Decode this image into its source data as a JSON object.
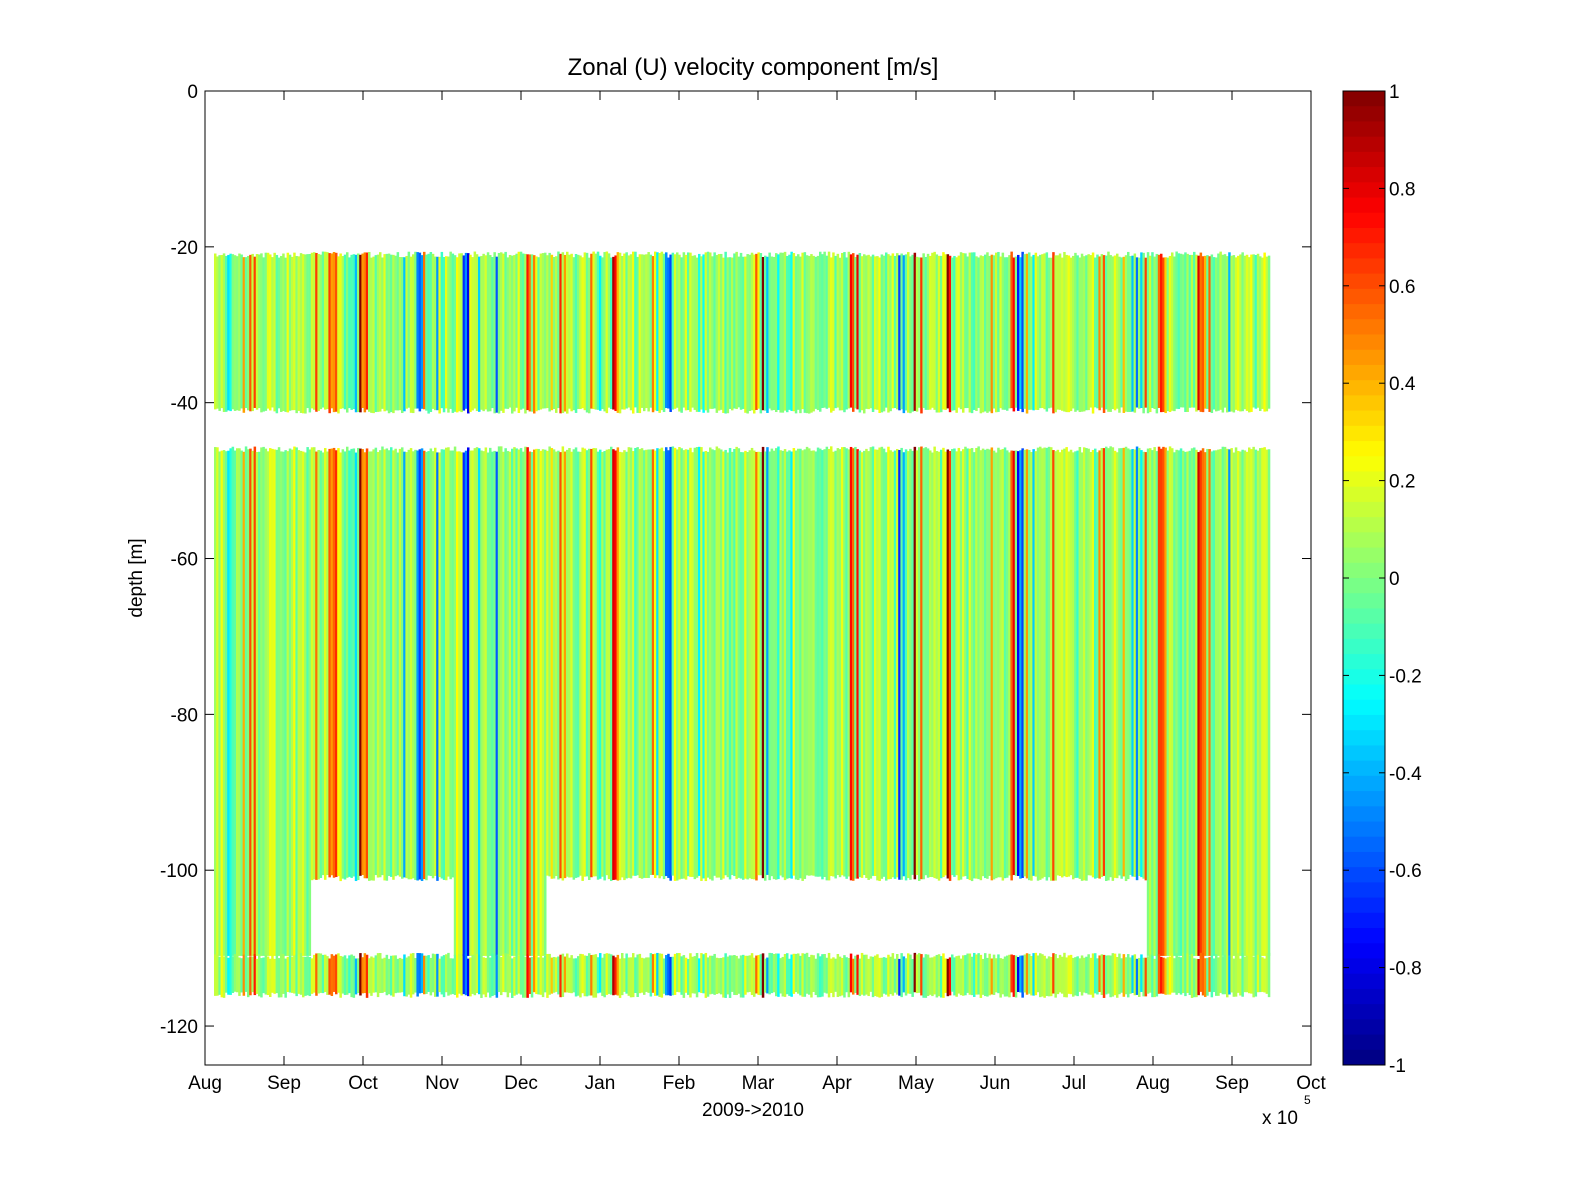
{
  "chart_data": {
    "type": "heatmap",
    "title": "Zonal (U) velocity component [m/s]",
    "xlabel": "2009->2010",
    "ylabel": "depth [m]",
    "x_exponent_base": "x 10",
    "x_exponent_power": "5",
    "x_tick_labels": [
      "Aug",
      "Sep",
      "Oct",
      "Nov",
      "Dec",
      "Jan",
      "Feb",
      "Mar",
      "Apr",
      "May",
      "Jun",
      "Jul",
      "Aug",
      "Sep",
      "Oct"
    ],
    "y_ticks": [
      0,
      -20,
      -40,
      -60,
      -80,
      -100,
      -120
    ],
    "y_tick_labels": [
      "0",
      "-20",
      "-40",
      "-60",
      "-80",
      "-100",
      "-120"
    ],
    "ylim": [
      -125,
      0
    ],
    "colorbar": {
      "colormap": "jet",
      "clim": [
        -1,
        1
      ],
      "ticks": [
        1,
        0.8,
        0.6,
        0.4,
        0.2,
        0,
        -0.2,
        -0.4,
        -0.6,
        -0.8,
        -1
      ],
      "tick_labels": [
        "1",
        "0.8",
        "0.6",
        "0.4",
        "0.2",
        "0",
        "-0.2",
        "-0.4",
        "-0.6",
        "-0.8",
        "-1"
      ],
      "colors": [
        "#00008f",
        "#0000ff",
        "#00ffff",
        "#80ff80",
        "#ffff00",
        "#ff0000",
        "#800000"
      ]
    },
    "bins": [
      {
        "top": -21,
        "bottom": -41
      },
      {
        "top": -46,
        "bottom": -101
      },
      {
        "top": -111,
        "bottom": -116
      }
    ],
    "gaps": [
      {
        "from": "Sep",
        "to": "Nov",
        "top": -101,
        "bottom": -111
      },
      {
        "from": "Dec",
        "to": "Aug",
        "top": -101,
        "bottom": -111
      }
    ],
    "dominant_values": {
      "mean": 0.05,
      "spread": 0.15
    },
    "strong_positive_features": [
      "Aug",
      "Sep",
      "Dec",
      "Mar",
      "May",
      "Jun",
      "Jul",
      "Aug"
    ],
    "strong_negative_features": [
      "Oct",
      "Nov",
      "Feb",
      "May"
    ]
  }
}
